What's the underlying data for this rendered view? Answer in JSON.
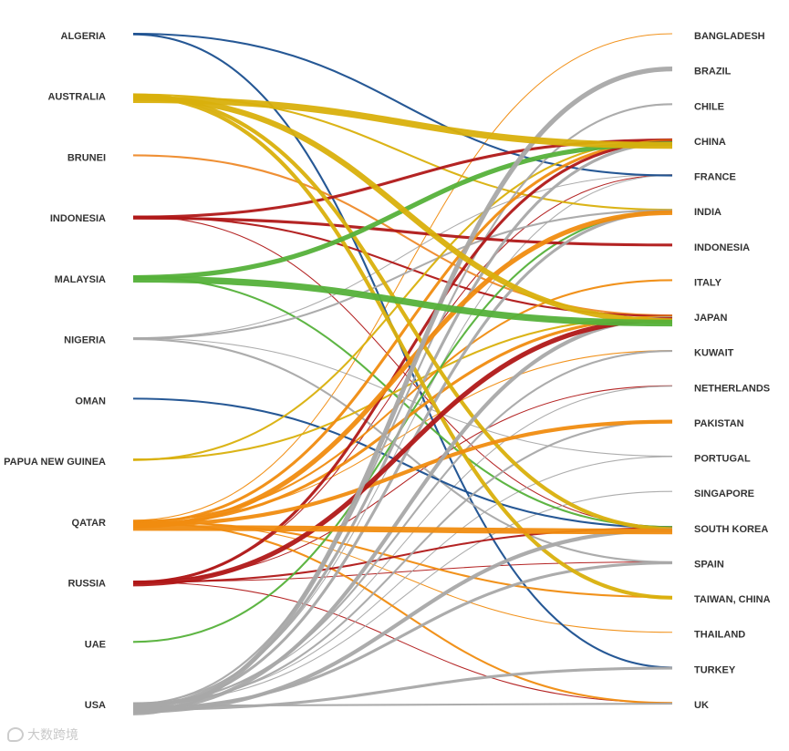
{
  "chart_data": {
    "type": "sankey",
    "title": "",
    "exporters": [
      "ALGERIA",
      "AUSTRALIA",
      "BRUNEI",
      "INDONESIA",
      "MALAYSIA",
      "NIGERIA",
      "OMAN",
      "PAPUA NEW GUINEA",
      "QATAR",
      "RUSSIA",
      "UAE",
      "USA"
    ],
    "importers": [
      "BANGLADESH",
      "BRAZIL",
      "CHILE",
      "CHINA",
      "FRANCE",
      "INDIA",
      "INDONESIA",
      "ITALY",
      "JAPAN",
      "KUWAIT",
      "NETHERLANDS",
      "PAKISTAN",
      "PORTUGAL",
      "SINGAPORE",
      "SOUTH KOREA",
      "SPAIN",
      "TAIWAN, CHINA",
      "THAILAND",
      "TURKEY",
      "UK"
    ],
    "colors": {
      "ALGERIA": "#1a4f8f",
      "AUSTRALIA": "#d9b00c",
      "BRUNEI": "#ee8a2a",
      "INDONESIA": "#b01818",
      "MALAYSIA": "#55b13a",
      "NIGERIA": "#a8a8a8",
      "OMAN": "#1a4f8f",
      "PAPUA NEW GUINEA": "#d9b00c",
      "QATAR": "#f08c10",
      "RUSSIA": "#b01818",
      "UAE": "#55b13a",
      "USA": "#a8a8a8"
    },
    "flows": [
      {
        "from": "ALGERIA",
        "to": "FRANCE",
        "weight": 2
      },
      {
        "from": "ALGERIA",
        "to": "TURKEY",
        "weight": 2
      },
      {
        "from": "AUSTRALIA",
        "to": "CHINA",
        "weight": 7
      },
      {
        "from": "AUSTRALIA",
        "to": "JAPAN",
        "weight": 6
      },
      {
        "from": "AUSTRALIA",
        "to": "SOUTH KOREA",
        "weight": 4
      },
      {
        "from": "AUSTRALIA",
        "to": "TAIWAN, CHINA",
        "weight": 4
      },
      {
        "from": "AUSTRALIA",
        "to": "INDIA",
        "weight": 2
      },
      {
        "from": "BRUNEI",
        "to": "JAPAN",
        "weight": 2
      },
      {
        "from": "INDONESIA",
        "to": "CHINA",
        "weight": 3
      },
      {
        "from": "INDONESIA",
        "to": "INDONESIA",
        "weight": 3
      },
      {
        "from": "INDONESIA",
        "to": "JAPAN",
        "weight": 2
      },
      {
        "from": "INDONESIA",
        "to": "SOUTH KOREA",
        "weight": 1
      },
      {
        "from": "MALAYSIA",
        "to": "CHINA",
        "weight": 5
      },
      {
        "from": "MALAYSIA",
        "to": "JAPAN",
        "weight": 7
      },
      {
        "from": "MALAYSIA",
        "to": "SOUTH KOREA",
        "weight": 2
      },
      {
        "from": "NIGERIA",
        "to": "FRANCE",
        "weight": 1
      },
      {
        "from": "NIGERIA",
        "to": "INDIA",
        "weight": 2
      },
      {
        "from": "NIGERIA",
        "to": "SPAIN",
        "weight": 2
      },
      {
        "from": "NIGERIA",
        "to": "PORTUGAL",
        "weight": 1
      },
      {
        "from": "OMAN",
        "to": "SOUTH KOREA",
        "weight": 2
      },
      {
        "from": "PAPUA NEW GUINEA",
        "to": "JAPAN",
        "weight": 2
      },
      {
        "from": "PAPUA NEW GUINEA",
        "to": "CHINA",
        "weight": 2
      },
      {
        "from": "QATAR",
        "to": "BANGLADESH",
        "weight": 1
      },
      {
        "from": "QATAR",
        "to": "CHINA",
        "weight": 3
      },
      {
        "from": "QATAR",
        "to": "INDIA",
        "weight": 5
      },
      {
        "from": "QATAR",
        "to": "ITALY",
        "weight": 2
      },
      {
        "from": "QATAR",
        "to": "JAPAN",
        "weight": 3
      },
      {
        "from": "QATAR",
        "to": "KUWAIT",
        "weight": 1
      },
      {
        "from": "QATAR",
        "to": "PAKISTAN",
        "weight": 4
      },
      {
        "from": "QATAR",
        "to": "SOUTH KOREA",
        "weight": 6
      },
      {
        "from": "QATAR",
        "to": "TAIWAN, CHINA",
        "weight": 2
      },
      {
        "from": "QATAR",
        "to": "THAILAND",
        "weight": 1
      },
      {
        "from": "QATAR",
        "to": "UK",
        "weight": 2
      },
      {
        "from": "RUSSIA",
        "to": "CHINA",
        "weight": 3
      },
      {
        "from": "RUSSIA",
        "to": "JAPAN",
        "weight": 5
      },
      {
        "from": "RUSSIA",
        "to": "SOUTH KOREA",
        "weight": 2
      },
      {
        "from": "RUSSIA",
        "to": "NETHERLANDS",
        "weight": 1
      },
      {
        "from": "RUSSIA",
        "to": "FRANCE",
        "weight": 1
      },
      {
        "from": "RUSSIA",
        "to": "SPAIN",
        "weight": 1
      },
      {
        "from": "RUSSIA",
        "to": "UK",
        "weight": 1
      },
      {
        "from": "UAE",
        "to": "INDIA",
        "weight": 2
      },
      {
        "from": "USA",
        "to": "BRAZIL",
        "weight": 5
      },
      {
        "from": "USA",
        "to": "CHILE",
        "weight": 2
      },
      {
        "from": "USA",
        "to": "CHINA",
        "weight": 3
      },
      {
        "from": "USA",
        "to": "INDIA",
        "weight": 3
      },
      {
        "from": "USA",
        "to": "JAPAN",
        "weight": 4
      },
      {
        "from": "USA",
        "to": "KUWAIT",
        "weight": 2
      },
      {
        "from": "USA",
        "to": "NETHERLANDS",
        "weight": 1
      },
      {
        "from": "USA",
        "to": "PAKISTAN",
        "weight": 2
      },
      {
        "from": "USA",
        "to": "SOUTH KOREA",
        "weight": 4
      },
      {
        "from": "USA",
        "to": "SPAIN",
        "weight": 3
      },
      {
        "from": "USA",
        "to": "TURKEY",
        "weight": 3
      },
      {
        "from": "USA",
        "to": "UK",
        "weight": 2
      },
      {
        "from": "USA",
        "to": "PORTUGAL",
        "weight": 1
      },
      {
        "from": "USA",
        "to": "SINGAPORE",
        "weight": 1
      },
      {
        "from": "USA",
        "to": "FRANCE",
        "weight": 1
      }
    ]
  },
  "watermark": {
    "text": "大数跨境"
  }
}
